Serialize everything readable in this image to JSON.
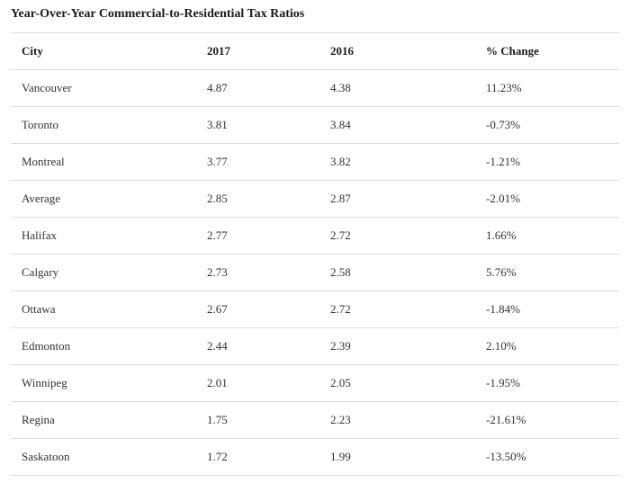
{
  "title": "Year-Over-Year Commercial-to-Residential Tax Ratios",
  "table": {
    "headers": [
      "City",
      "2017",
      "2016",
      "% Change"
    ],
    "rows": [
      [
        "Vancouver",
        "4.87",
        "4.38",
        "11.23%"
      ],
      [
        "Toronto",
        "3.81",
        "3.84",
        "-0.73%"
      ],
      [
        "Montreal",
        "3.77",
        "3.82",
        "-1.21%"
      ],
      [
        "Average",
        "2.85",
        "2.87",
        "-2.01%"
      ],
      [
        "Halifax",
        "2.77",
        "2.72",
        "1.66%"
      ],
      [
        "Calgary",
        "2.73",
        "2.58",
        "5.76%"
      ],
      [
        "Ottawa",
        "2.67",
        "2.72",
        "-1.84%"
      ],
      [
        "Edmonton",
        "2.44",
        "2.39",
        "2.10%"
      ],
      [
        "Winnipeg",
        "2.01",
        "2.05",
        "-1.95%"
      ],
      [
        "Regina",
        "1.75",
        "2.23",
        "-21.61%"
      ],
      [
        "Saskatoon",
        "1.72",
        "1.99",
        "-13.50%"
      ]
    ]
  }
}
